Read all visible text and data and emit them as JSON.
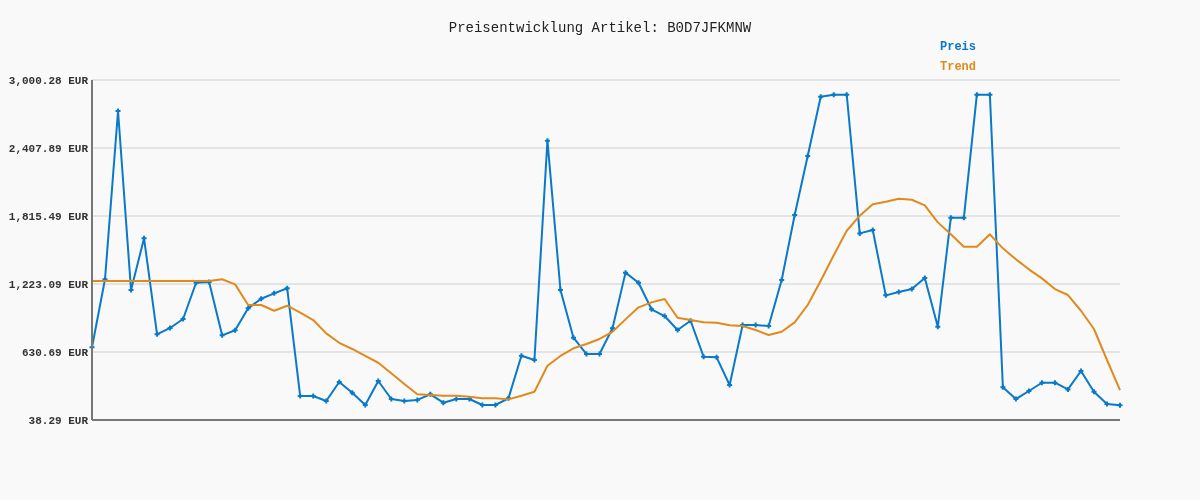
{
  "chart_data": {
    "type": "line",
    "title": "Preisentwicklung Artikel: B0D7JFKMNW",
    "categories": [
      null,
      null,
      null,
      null,
      null,
      null,
      null,
      null,
      null,
      null,
      null,
      null,
      null,
      null,
      null,
      null,
      null,
      null,
      null,
      null,
      null,
      null,
      null,
      null,
      null,
      null,
      null,
      null,
      null,
      null,
      null,
      null,
      null,
      null,
      null,
      null,
      null,
      null,
      null,
      null,
      null,
      null,
      null,
      null,
      null,
      null,
      null,
      null,
      null,
      null,
      null,
      null,
      null,
      null,
      null,
      null,
      null,
      null,
      null,
      null,
      null,
      null,
      null,
      null,
      null,
      null,
      null,
      null,
      null,
      null,
      null,
      null,
      null,
      null,
      null,
      null,
      null,
      null,
      null,
      null
    ],
    "series": [
      {
        "name": "Preis",
        "color": "#0a79c8",
        "marker": "cross",
        "values": [
          672,
          1264,
          2730,
          1171,
          1621,
          785,
          840,
          918,
          1234,
          1241,
          776,
          820,
          1011,
          1095,
          1142,
          1186,
          247,
          247,
          204,
          369,
          276,
          169,
          378,
          221,
          204,
          213,
          262,
          189,
          221,
          221,
          169,
          169,
          227,
          598,
          561,
          2472,
          1171,
          755,
          613,
          613,
          837,
          1322,
          1234,
          1003,
          944,
          822,
          903,
          590,
          584,
          343,
          866,
          866,
          857,
          1258,
          1824,
          2338,
          2855,
          2872,
          2872,
          1664,
          1693,
          1124,
          1153,
          1179,
          1275,
          851,
          1800,
          1800,
          2872,
          2872,
          323,
          221,
          291,
          363,
          363,
          305,
          465,
          285,
          177,
          166
        ]
      },
      {
        "name": "Trend",
        "color": "#e08a1e",
        "marker": "none",
        "values": [
          1249,
          1249,
          1249,
          1249,
          1249,
          1249,
          1249,
          1249,
          1249,
          1249,
          1264,
          1220,
          1040,
          1040,
          990,
          1034,
          973,
          909,
          793,
          711,
          657,
          596,
          537,
          445,
          352,
          262,
          256,
          250,
          250,
          241,
          227,
          227,
          218,
          250,
          285,
          511,
          596,
          663,
          700,
          744,
          807,
          915,
          1020,
          1063,
          1092,
          929,
          909,
          889,
          886,
          863,
          857,
          822,
          779,
          807,
          889,
          1040,
          1252,
          1473,
          1687,
          1818,
          1917,
          1940,
          1966,
          1957,
          1908,
          1760,
          1656,
          1548,
          1548,
          1656,
          1534,
          1438,
          1351,
          1272,
          1179,
          1127,
          990,
          831,
          561,
          299
        ]
      }
    ],
    "ylim": [
      38.29,
      3000.28
    ],
    "yticks": [
      {
        "value": 38.29,
        "label": "38.29 EUR"
      },
      {
        "value": 630.69,
        "label": "630.69 EUR"
      },
      {
        "value": 1223.09,
        "label": "1,223.09 EUR"
      },
      {
        "value": 1815.49,
        "label": "1,815.49 EUR"
      },
      {
        "value": 2407.89,
        "label": "2,407.89 EUR"
      },
      {
        "value": 3000.28,
        "label": "3,000.28 EUR"
      }
    ],
    "grid": "y",
    "legend": "top right",
    "line_style": "solid"
  }
}
